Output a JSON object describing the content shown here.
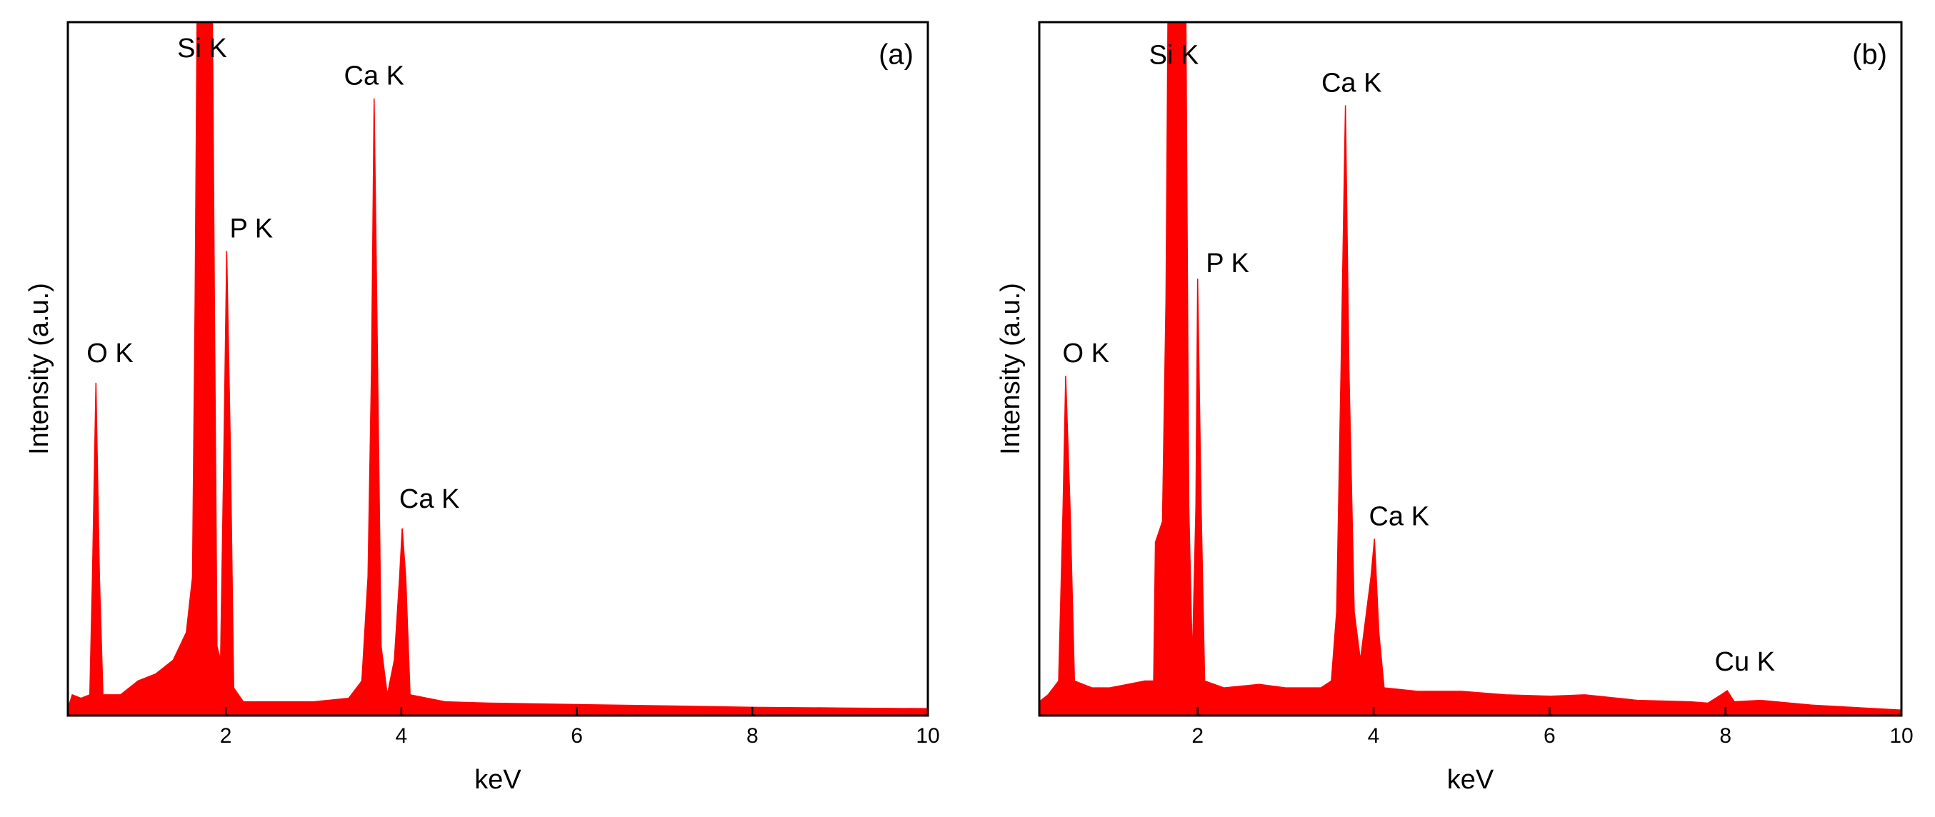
{
  "chart_data": [
    {
      "type": "area",
      "panel_label": "(a)",
      "xlabel": "keV",
      "ylabel": "Intensity (a.u.)",
      "color": "#ff0000",
      "xlim": [
        0.2,
        10
      ],
      "ylim": [
        0,
        100
      ],
      "xticks": [
        2,
        4,
        6,
        8,
        10
      ],
      "x": [
        0.2,
        0.25,
        0.35,
        0.45,
        0.48,
        0.52,
        0.56,
        0.6,
        0.8,
        1.0,
        1.2,
        1.4,
        1.55,
        1.62,
        1.65,
        1.68,
        1.84,
        1.87,
        1.9,
        1.94,
        1.98,
        2.01,
        2.05,
        2.09,
        2.2,
        2.6,
        3.0,
        3.4,
        3.55,
        3.62,
        3.66,
        3.69,
        3.73,
        3.77,
        3.84,
        3.92,
        3.98,
        4.01,
        4.05,
        4.1,
        4.5,
        5,
        6,
        7,
        8,
        9,
        10
      ],
      "values": [
        1,
        3,
        2.5,
        3,
        20,
        48,
        20,
        3,
        3,
        5,
        6,
        8,
        12,
        20,
        60,
        115,
        115,
        60,
        10,
        8,
        40,
        67,
        40,
        4,
        2,
        2,
        2,
        2.5,
        5,
        20,
        50,
        89,
        50,
        10,
        3,
        8,
        20,
        27,
        20,
        3,
        2,
        1.8,
        1.6,
        1.4,
        1.2,
        1.1,
        1
      ],
      "annotations": [
        {
          "text": "O K",
          "x": 0.68,
          "y": 52
        },
        {
          "text": "Si K",
          "x": 1.73,
          "y": 96
        },
        {
          "text": "P K",
          "x": 2.29,
          "y": 70
        },
        {
          "text": "Ca K",
          "x": 3.69,
          "y": 92
        },
        {
          "text": "Ca K",
          "x": 4.32,
          "y": 31
        }
      ]
    },
    {
      "type": "area",
      "panel_label": "(b)",
      "xlabel": "keV",
      "ylabel": "Intensity (a.u.)",
      "color": "#ff0000",
      "xlim": [
        0.2,
        10
      ],
      "ylim": [
        0,
        100
      ],
      "xticks": [
        2,
        4,
        6,
        8,
        10
      ],
      "x": [
        0.2,
        0.3,
        0.42,
        0.47,
        0.5,
        0.55,
        0.6,
        0.8,
        1.0,
        1.2,
        1.4,
        1.5,
        1.52,
        1.6,
        1.64,
        1.67,
        1.86,
        1.9,
        1.94,
        1.98,
        2.0,
        2.04,
        2.08,
        2.3,
        2.7,
        3.0,
        3.4,
        3.52,
        3.58,
        3.63,
        3.68,
        3.72,
        3.78,
        3.85,
        3.92,
        3.97,
        4.01,
        4.06,
        4.12,
        4.5,
        5,
        5.5,
        6,
        6.4,
        7,
        7.6,
        7.8,
        7.95,
        8.02,
        8.1,
        8.4,
        9,
        10
      ],
      "values": [
        2,
        3,
        5,
        30,
        49,
        30,
        5,
        4,
        4,
        4.5,
        5,
        5,
        25,
        28,
        60,
        115,
        115,
        30,
        8,
        30,
        63,
        30,
        5,
        4,
        4.5,
        4,
        4,
        5,
        15,
        50,
        88,
        50,
        15,
        8,
        15,
        20,
        25.5,
        12,
        4,
        3.5,
        3.5,
        3,
        2.8,
        3,
        2.2,
        2,
        1.8,
        3,
        3.6,
        2,
        2.2,
        1.5,
        0.8
      ],
      "annotations": [
        {
          "text": "O K",
          "x": 0.73,
          "y": 52
        },
        {
          "text": "Si K",
          "x": 1.73,
          "y": 95
        },
        {
          "text": "P K",
          "x": 2.34,
          "y": 65
        },
        {
          "text": "Ca K",
          "x": 3.75,
          "y": 91
        },
        {
          "text": "Ca K",
          "x": 4.29,
          "y": 28.5
        },
        {
          "text": "Cu K",
          "x": 8.22,
          "y": 7.5
        }
      ]
    }
  ]
}
